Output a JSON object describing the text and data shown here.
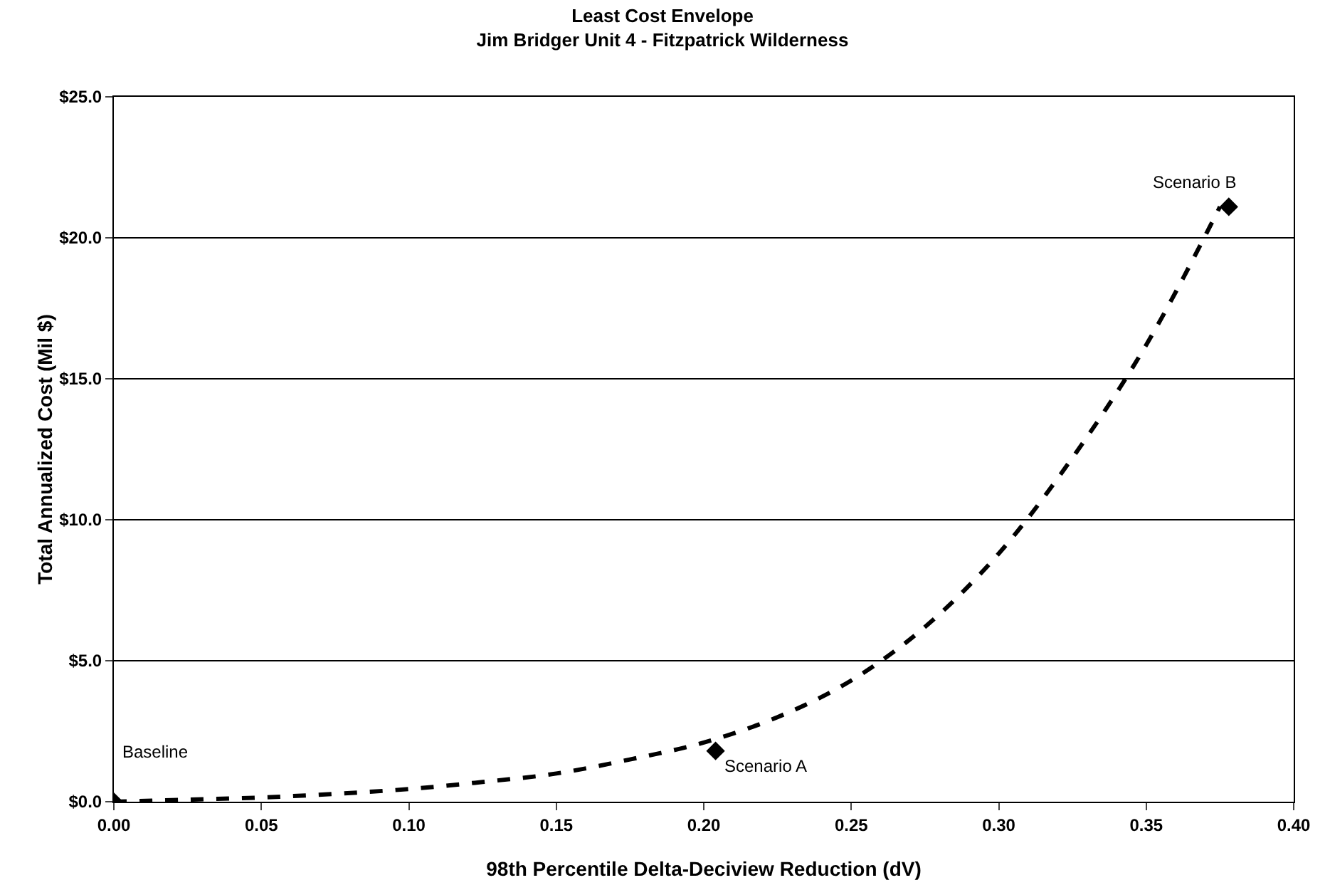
{
  "chart_data": {
    "type": "line",
    "title": "Least Cost Envelope",
    "subtitle": "Jim Bridger Unit 4 - Fitzpatrick Wilderness",
    "xlabel": "98th Percentile Delta-Deciview Reduction (dV)",
    "ylabel": "Total Annualized Cost (Mil $)",
    "series": [
      {
        "color": "#000000",
        "line_style": "dashed",
        "marker": "none",
        "x": [
          0,
          0.025,
          0.05,
          0.075,
          0.1,
          0.125,
          0.15,
          0.175,
          0.2,
          0.225,
          0.25,
          0.275,
          0.3,
          0.325,
          0.35,
          0.375
        ],
        "values": [
          0,
          0.07,
          0.15,
          0.28,
          0.45,
          0.7,
          1.0,
          1.5,
          2.1,
          3.0,
          4.3,
          6.2,
          8.8,
          12.2,
          16.2,
          21.1
        ]
      },
      {
        "type": "scatter",
        "color": "#000000",
        "marker": "diamond",
        "x": [
          0,
          0.204,
          0.378
        ],
        "values": [
          0,
          1.8,
          21.1
        ]
      }
    ],
    "annotations": [
      {
        "text": "Baseline",
        "x": 0,
        "y": 0
      },
      {
        "text": "Scenario A",
        "x": 0.204,
        "y": 1.8
      },
      {
        "text": "Scenario B",
        "x": 0.378,
        "y": 21.1
      }
    ],
    "xlim": [
      0,
      0.4
    ],
    "xticks": [
      {
        "value": 0,
        "label": "0.00"
      },
      0.05,
      {
        "value": 0.1,
        "label": "0.10"
      },
      0.15,
      {
        "value": 0.2,
        "label": "0.20"
      },
      0.25,
      {
        "value": 0.3,
        "label": "0.30"
      },
      0.35,
      {
        "value": 0.4,
        "label": "0.40"
      }
    ],
    "ylim": [
      0,
      25
    ],
    "yticks": [
      {
        "value": 0,
        "label": "$0.0"
      },
      {
        "value": 5,
        "label": "$5.0"
      },
      {
        "value": 10,
        "label": "$10.0"
      },
      {
        "value": 15,
        "label": "$15.0"
      },
      {
        "value": 20,
        "label": "$20.0"
      },
      {
        "value": 25,
        "label": "$25.0"
      }
    ],
    "grid": "y"
  }
}
